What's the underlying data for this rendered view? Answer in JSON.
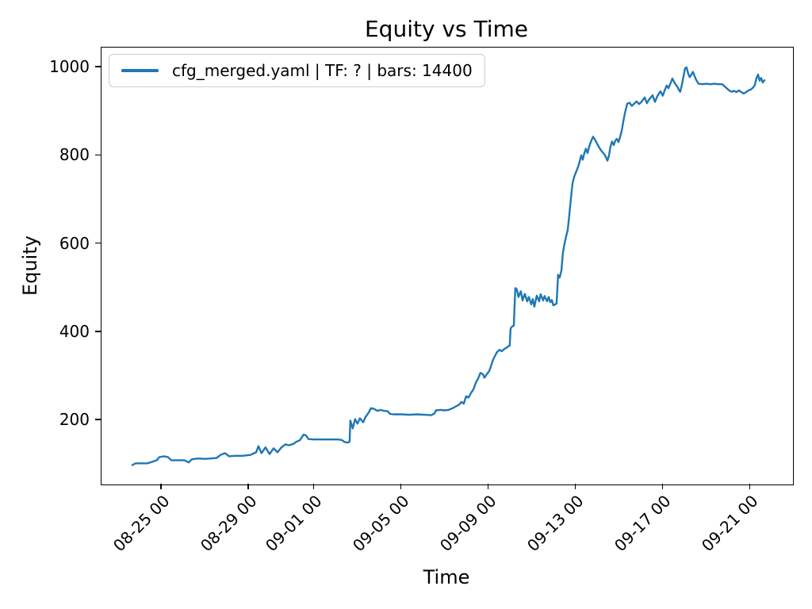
{
  "chart_data": {
    "type": "line",
    "title": "Equity vs Time",
    "xlabel": "Time",
    "ylabel": "Equity",
    "grid": false,
    "legend_position": "upper left",
    "legend": [
      "cfg_merged.yaml | TF: ? | bars: 14400"
    ],
    "line_color": "#1f77b4",
    "axis_color": "#000000",
    "legend_border_color": "#cccccc",
    "x_unit": "days since 08-25 00:00",
    "xlim": [
      -2.76,
      28.95
    ],
    "ylim": [
      55,
      1045
    ],
    "y_ticks": [
      200,
      400,
      600,
      800,
      1000
    ],
    "x_ticks": [
      {
        "t": 0,
        "label": "08-25 00"
      },
      {
        "t": 4,
        "label": "08-29 00"
      },
      {
        "t": 7,
        "label": "09-01 00"
      },
      {
        "t": 11,
        "label": "09-05 00"
      },
      {
        "t": 15,
        "label": "09-09 00"
      },
      {
        "t": 19,
        "label": "09-13 00"
      },
      {
        "t": 23,
        "label": "09-17 00"
      },
      {
        "t": 27,
        "label": "09-21 00"
      }
    ],
    "series": [
      {
        "name": "cfg_merged.yaml | TF: ? | bars: 14400",
        "color": "#1f77b4",
        "points": [
          [
            -1.35,
            99
          ],
          [
            -1.2,
            103
          ],
          [
            -0.65,
            103
          ],
          [
            -0.22,
            110
          ],
          [
            -0.11,
            117
          ],
          [
            0.11,
            119
          ],
          [
            0.29,
            117
          ],
          [
            0.44,
            110
          ],
          [
            0.69,
            110
          ],
          [
            1.05,
            110
          ],
          [
            1.24,
            105
          ],
          [
            1.38,
            112
          ],
          [
            1.64,
            114
          ],
          [
            2.0,
            113
          ],
          [
            2.25,
            114
          ],
          [
            2.51,
            115
          ],
          [
            2.73,
            123
          ],
          [
            2.91,
            126
          ],
          [
            3.09,
            119
          ],
          [
            3.38,
            120
          ],
          [
            3.71,
            120
          ],
          [
            4.07,
            122
          ],
          [
            4.33,
            128
          ],
          [
            4.44,
            142
          ],
          [
            4.58,
            126
          ],
          [
            4.76,
            139
          ],
          [
            4.95,
            124
          ],
          [
            5.13,
            137
          ],
          [
            5.31,
            128
          ],
          [
            5.49,
            139
          ],
          [
            5.67,
            146
          ],
          [
            5.85,
            144
          ],
          [
            6.04,
            147
          ],
          [
            6.18,
            152
          ],
          [
            6.33,
            155
          ],
          [
            6.44,
            163
          ],
          [
            6.51,
            168
          ],
          [
            6.62,
            166
          ],
          [
            6.73,
            158
          ],
          [
            6.98,
            157
          ],
          [
            7.35,
            157
          ],
          [
            7.71,
            157
          ],
          [
            8.07,
            157
          ],
          [
            8.25,
            156
          ],
          [
            8.4,
            151
          ],
          [
            8.55,
            150
          ],
          [
            8.62,
            152
          ],
          [
            8.65,
            200
          ],
          [
            8.76,
            182
          ],
          [
            8.87,
            203
          ],
          [
            8.98,
            193
          ],
          [
            9.09,
            205
          ],
          [
            9.24,
            196
          ],
          [
            9.35,
            208
          ],
          [
            9.49,
            218
          ],
          [
            9.6,
            228
          ],
          [
            9.75,
            226
          ],
          [
            9.89,
            222
          ],
          [
            10.04,
            224
          ],
          [
            10.18,
            222
          ],
          [
            10.36,
            221
          ],
          [
            10.47,
            215
          ],
          [
            10.62,
            214
          ],
          [
            10.98,
            214
          ],
          [
            11.35,
            213
          ],
          [
            11.71,
            214
          ],
          [
            12.07,
            213
          ],
          [
            12.36,
            212
          ],
          [
            12.51,
            216
          ],
          [
            12.58,
            223
          ],
          [
            12.8,
            224
          ],
          [
            12.98,
            223
          ],
          [
            13.16,
            224
          ],
          [
            13.35,
            228
          ],
          [
            13.49,
            232
          ],
          [
            13.64,
            236
          ],
          [
            13.75,
            242
          ],
          [
            13.85,
            238
          ],
          [
            13.96,
            255
          ],
          [
            14.07,
            252
          ],
          [
            14.18,
            262
          ],
          [
            14.29,
            270
          ],
          [
            14.4,
            285
          ],
          [
            14.51,
            295
          ],
          [
            14.62,
            308
          ],
          [
            14.73,
            305
          ],
          [
            14.8,
            297
          ],
          [
            14.91,
            305
          ],
          [
            15.02,
            312
          ],
          [
            15.09,
            322
          ],
          [
            15.2,
            338
          ],
          [
            15.27,
            345
          ],
          [
            15.38,
            355
          ],
          [
            15.49,
            360
          ],
          [
            15.6,
            357
          ],
          [
            15.71,
            362
          ],
          [
            15.82,
            365
          ],
          [
            15.89,
            368
          ],
          [
            15.96,
            370
          ],
          [
            16.0,
            408
          ],
          [
            16.07,
            413
          ],
          [
            16.15,
            415
          ],
          [
            16.18,
            455
          ],
          [
            16.22,
            500
          ],
          [
            16.29,
            497
          ],
          [
            16.36,
            480
          ],
          [
            16.47,
            493
          ],
          [
            16.55,
            472
          ],
          [
            16.65,
            487
          ],
          [
            16.76,
            470
          ],
          [
            16.84,
            480
          ],
          [
            16.95,
            463
          ],
          [
            17.02,
            475
          ],
          [
            17.09,
            458
          ],
          [
            17.2,
            483
          ],
          [
            17.31,
            470
          ],
          [
            17.38,
            486
          ],
          [
            17.49,
            472
          ],
          [
            17.56,
            482
          ],
          [
            17.67,
            470
          ],
          [
            17.75,
            480
          ],
          [
            17.82,
            468
          ],
          [
            17.89,
            473
          ],
          [
            17.96,
            461
          ],
          [
            18.04,
            463
          ],
          [
            18.11,
            465
          ],
          [
            18.18,
            530
          ],
          [
            18.25,
            524
          ],
          [
            18.33,
            540
          ],
          [
            18.4,
            580
          ],
          [
            18.47,
            600
          ],
          [
            18.55,
            618
          ],
          [
            18.62,
            631
          ],
          [
            18.69,
            665
          ],
          [
            18.76,
            700
          ],
          [
            18.84,
            737
          ],
          [
            18.91,
            751
          ],
          [
            18.98,
            760
          ],
          [
            19.05,
            769
          ],
          [
            19.13,
            780
          ],
          [
            19.24,
            801
          ],
          [
            19.31,
            791
          ],
          [
            19.38,
            805
          ],
          [
            19.45,
            816
          ],
          [
            19.53,
            806
          ],
          [
            19.6,
            820
          ],
          [
            19.67,
            830
          ],
          [
            19.78,
            843
          ],
          [
            19.85,
            838
          ],
          [
            19.96,
            828
          ],
          [
            20.07,
            818
          ],
          [
            20.15,
            812
          ],
          [
            20.25,
            806
          ],
          [
            20.33,
            801
          ],
          [
            20.44,
            789
          ],
          [
            20.51,
            800
          ],
          [
            20.58,
            820
          ],
          [
            20.65,
            832
          ],
          [
            20.73,
            824
          ],
          [
            20.8,
            834
          ],
          [
            20.87,
            838
          ],
          [
            20.95,
            831
          ],
          [
            21.02,
            842
          ],
          [
            21.09,
            855
          ],
          [
            21.16,
            875
          ],
          [
            21.24,
            896
          ],
          [
            21.35,
            918
          ],
          [
            21.45,
            920
          ],
          [
            21.56,
            913
          ],
          [
            21.67,
            918
          ],
          [
            21.78,
            923
          ],
          [
            21.89,
            917
          ],
          [
            22.0,
            922
          ],
          [
            22.15,
            932
          ],
          [
            22.25,
            919
          ],
          [
            22.36,
            928
          ],
          [
            22.51,
            937
          ],
          [
            22.62,
            922
          ],
          [
            22.73,
            935
          ],
          [
            22.87,
            946
          ],
          [
            22.98,
            936
          ],
          [
            23.09,
            951
          ],
          [
            23.16,
            959
          ],
          [
            23.24,
            953
          ],
          [
            23.35,
            966
          ],
          [
            23.42,
            975
          ],
          [
            23.49,
            968
          ],
          [
            23.56,
            962
          ],
          [
            23.64,
            957
          ],
          [
            23.71,
            950
          ],
          [
            23.78,
            945
          ],
          [
            23.85,
            960
          ],
          [
            23.93,
            980
          ],
          [
            24.0,
            998
          ],
          [
            24.07,
            1000
          ],
          [
            24.15,
            985
          ],
          [
            24.22,
            978
          ],
          [
            24.29,
            984
          ],
          [
            24.36,
            990
          ],
          [
            24.44,
            980
          ],
          [
            24.51,
            972
          ],
          [
            24.62,
            963
          ],
          [
            24.8,
            962
          ],
          [
            24.98,
            963
          ],
          [
            25.16,
            962
          ],
          [
            25.35,
            963
          ],
          [
            25.53,
            962
          ],
          [
            25.71,
            962
          ],
          [
            25.82,
            957
          ],
          [
            25.93,
            952
          ],
          [
            26.04,
            947
          ],
          [
            26.15,
            945
          ],
          [
            26.25,
            947
          ],
          [
            26.36,
            944
          ],
          [
            26.47,
            948
          ],
          [
            26.58,
            944
          ],
          [
            26.69,
            941
          ],
          [
            26.8,
            944
          ],
          [
            26.91,
            948
          ],
          [
            27.02,
            950
          ],
          [
            27.13,
            955
          ],
          [
            27.2,
            960
          ],
          [
            27.27,
            975
          ],
          [
            27.35,
            984
          ],
          [
            27.42,
            970
          ],
          [
            27.49,
            976
          ],
          [
            27.56,
            966
          ],
          [
            27.64,
            971
          ]
        ]
      }
    ]
  }
}
